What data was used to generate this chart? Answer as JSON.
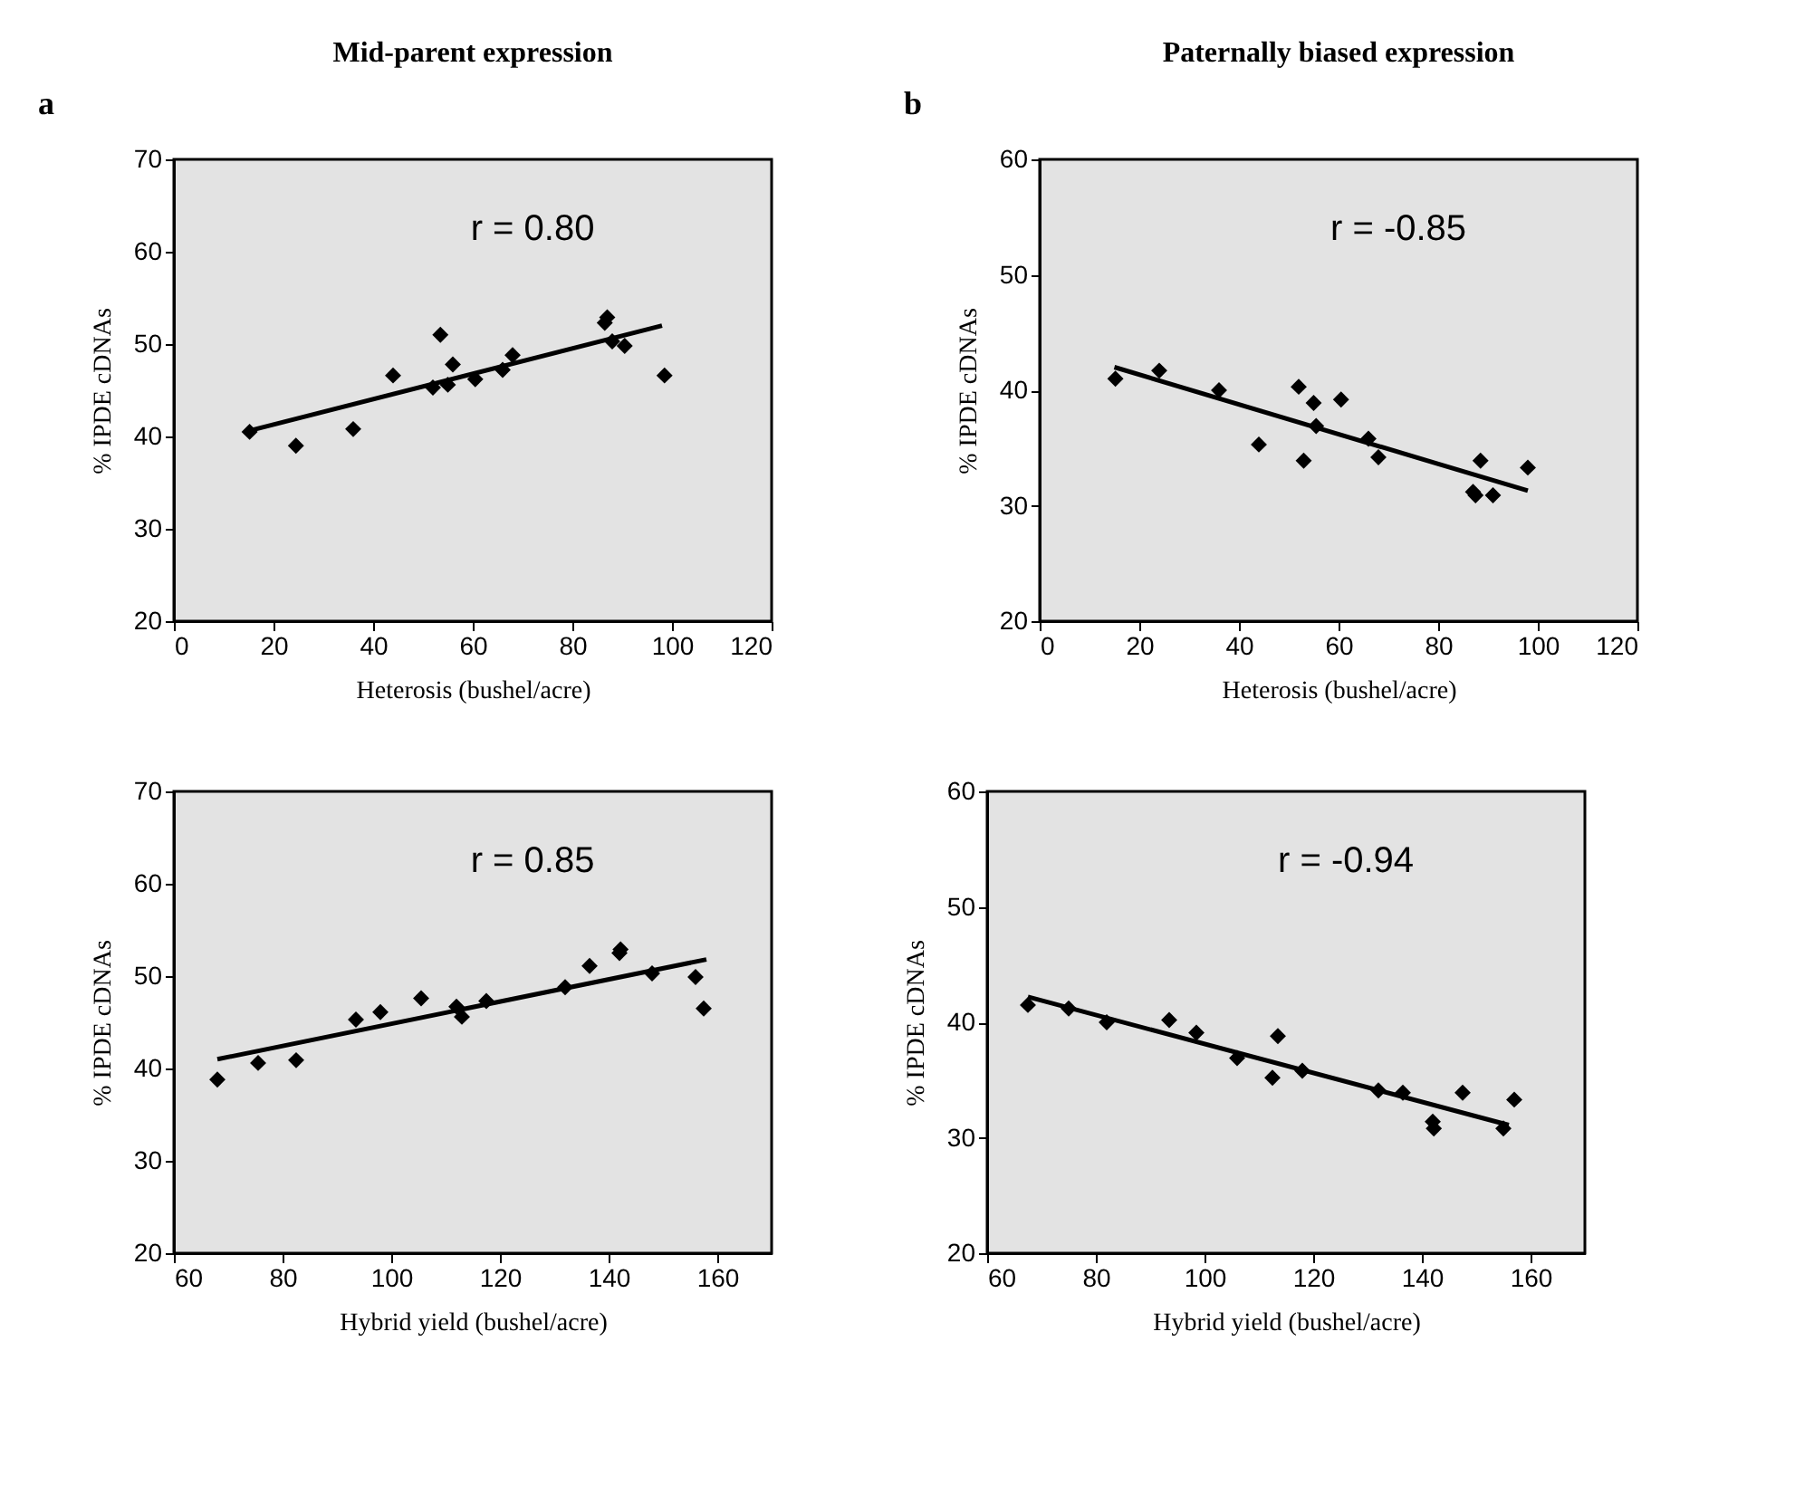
{
  "chart_data": [
    {
      "type": "scatter",
      "title": "Mid-parent expression",
      "xlabel": "Heterosis (bushel/acre)",
      "ylabel": "% IPDE cDNAs",
      "annotations": [
        "r = 0.80",
        "a"
      ],
      "xlim": [
        0,
        120
      ],
      "xticks": [
        0,
        20,
        40,
        60,
        80,
        100,
        120
      ],
      "ylim": [
        20,
        70
      ],
      "yticks": [
        20,
        30,
        40,
        50,
        60,
        70
      ],
      "grid": false,
      "series": [
        {
          "marker": "diamond",
          "color": "#000000",
          "x": [
            15.2,
            24.5,
            36,
            44,
            52,
            53.5,
            55,
            56,
            60.5,
            66,
            68,
            86.5,
            87,
            88,
            90.5,
            98.5
          ],
          "values": [
            40.5,
            39,
            40.8,
            46.6,
            45.3,
            51,
            45.6,
            47.8,
            46.2,
            47.2,
            48.8,
            52.3,
            52.9,
            50.3,
            49.8,
            46.6
          ]
        },
        {
          "type": "line",
          "color": "#000000",
          "x": [
            15,
            98
          ],
          "values": [
            40.6,
            52
          ]
        }
      ]
    },
    {
      "type": "scatter",
      "title": "Paternally biased expression",
      "xlabel": "Heterosis (bushel/acre)",
      "ylabel": "% IPDE cDNAs",
      "annotations": [
        "r = -0.85",
        "b"
      ],
      "xlim": [
        0,
        120
      ],
      "xticks": [
        0,
        20,
        40,
        60,
        80,
        100,
        120
      ],
      "ylim": [
        20,
        60
      ],
      "yticks": [
        20,
        30,
        40,
        50,
        60
      ],
      "grid": false,
      "series": [
        {
          "marker": "diamond",
          "color": "#000000",
          "x": [
            15.2,
            24,
            36,
            44,
            52,
            53,
            55,
            55.5,
            60.5,
            66,
            68,
            87,
            87.5,
            88.5,
            91,
            98
          ],
          "values": [
            41,
            41.7,
            40,
            35.3,
            40.3,
            33.9,
            38.9,
            36.9,
            39.2,
            35.8,
            34.2,
            31.2,
            30.9,
            33.9,
            30.9,
            33.3
          ]
        },
        {
          "type": "line",
          "color": "#000000",
          "x": [
            15,
            98
          ],
          "values": [
            42,
            31.3
          ]
        }
      ]
    },
    {
      "type": "scatter",
      "xlabel": "Hybrid yield (bushel/acre)",
      "ylabel": "% IPDE cDNAs",
      "annotations": [
        "r = 0.85"
      ],
      "xlim": [
        60,
        170
      ],
      "xticks": [
        60,
        80,
        100,
        120,
        140,
        160
      ],
      "ylim": [
        20,
        70
      ],
      "yticks": [
        20,
        30,
        40,
        50,
        60,
        70
      ],
      "grid": false,
      "series": [
        {
          "marker": "diamond",
          "color": "#000000",
          "x": [
            68,
            75.5,
            82.5,
            93.5,
            98,
            105.5,
            112,
            113,
            117.5,
            132,
            136.5,
            142,
            142.2,
            148,
            156,
            157.5
          ],
          "values": [
            38.8,
            40.6,
            40.9,
            45.3,
            46.1,
            47.6,
            46.7,
            45.6,
            47.3,
            48.8,
            51.1,
            52.5,
            52.9,
            50.3,
            49.9,
            46.5
          ]
        },
        {
          "type": "line",
          "color": "#000000",
          "x": [
            68,
            158
          ],
          "values": [
            41,
            51.8
          ]
        }
      ]
    },
    {
      "type": "scatter",
      "xlabel": "Hybrid yield (bushel/acre)",
      "ylabel": "% IPDE cDNAs",
      "annotations": [
        "r = -0.94"
      ],
      "xlim": [
        60,
        170
      ],
      "xticks": [
        60,
        80,
        100,
        120,
        140,
        160
      ],
      "ylim": [
        20,
        60
      ],
      "yticks": [
        20,
        30,
        40,
        50,
        60
      ],
      "grid": false,
      "series": [
        {
          "marker": "diamond",
          "color": "#000000",
          "x": [
            67.5,
            75,
            82,
            93.5,
            98.5,
            106,
            112.5,
            113.5,
            118,
            132,
            136.5,
            142,
            142.2,
            147.5,
            155,
            157
          ],
          "values": [
            41.5,
            41.2,
            40,
            40.2,
            39.1,
            36.9,
            35.2,
            38.8,
            35.8,
            34.1,
            33.9,
            31.4,
            30.8,
            33.9,
            30.8,
            33.3
          ]
        },
        {
          "type": "line",
          "color": "#000000",
          "x": [
            67.5,
            156
          ],
          "values": [
            42.2,
            31.1
          ]
        }
      ]
    }
  ]
}
